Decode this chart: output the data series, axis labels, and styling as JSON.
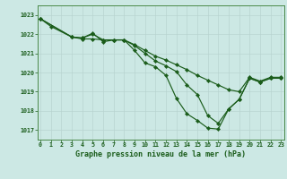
{
  "bg_color": "#cce8e4",
  "grid_color_major": "#b0cccc",
  "grid_color_minor": "#ddeaea",
  "line_color": "#1a5c1a",
  "title": "Graphe pression niveau de la mer (hPa)",
  "ylim": [
    1016.5,
    1023.5
  ],
  "xlim": [
    -0.3,
    23.3
  ],
  "yticks": [
    1017,
    1018,
    1019,
    1020,
    1021,
    1022,
    1023
  ],
  "xticks": [
    0,
    1,
    2,
    3,
    4,
    5,
    6,
    7,
    8,
    9,
    10,
    11,
    12,
    13,
    14,
    15,
    16,
    17,
    18,
    19,
    20,
    21,
    22,
    23
  ],
  "line1_x": [
    0,
    1,
    3,
    4,
    5,
    6,
    7,
    8,
    9,
    10,
    11,
    12,
    13,
    14,
    15,
    16,
    17,
    18,
    19,
    20,
    21,
    22,
    23
  ],
  "line1_y": [
    1022.8,
    1022.4,
    1021.85,
    1021.75,
    1021.75,
    1021.7,
    1021.7,
    1021.7,
    1021.45,
    1021.15,
    1020.85,
    1020.65,
    1020.4,
    1020.15,
    1019.85,
    1019.6,
    1019.35,
    1019.1,
    1019.0,
    1019.75,
    1019.55,
    1019.75,
    1019.75
  ],
  "line2_x": [
    0,
    3,
    4,
    5,
    6,
    7,
    8,
    9,
    10,
    11,
    12,
    13,
    14,
    15,
    16,
    17,
    18,
    19,
    20,
    21,
    22,
    23
  ],
  "line2_y": [
    1022.8,
    1021.85,
    1021.8,
    1022.0,
    1021.7,
    1021.7,
    1021.7,
    1021.4,
    1021.0,
    1020.6,
    1020.35,
    1020.05,
    1019.35,
    1018.85,
    1017.75,
    1017.35,
    1018.1,
    1018.6,
    1019.7,
    1019.5,
    1019.7,
    1019.7
  ],
  "line3_x": [
    0,
    3,
    4,
    5,
    6,
    7,
    8,
    9,
    10,
    11,
    12,
    13,
    14,
    15,
    16,
    17,
    18,
    19,
    20,
    21,
    22,
    23
  ],
  "line3_y": [
    1022.8,
    1021.85,
    1021.8,
    1022.05,
    1021.6,
    1021.7,
    1021.7,
    1021.15,
    1020.5,
    1020.3,
    1019.85,
    1018.65,
    1017.85,
    1017.5,
    1017.1,
    1017.05,
    1018.1,
    1018.6,
    1019.7,
    1019.5,
    1019.7,
    1019.7
  ]
}
